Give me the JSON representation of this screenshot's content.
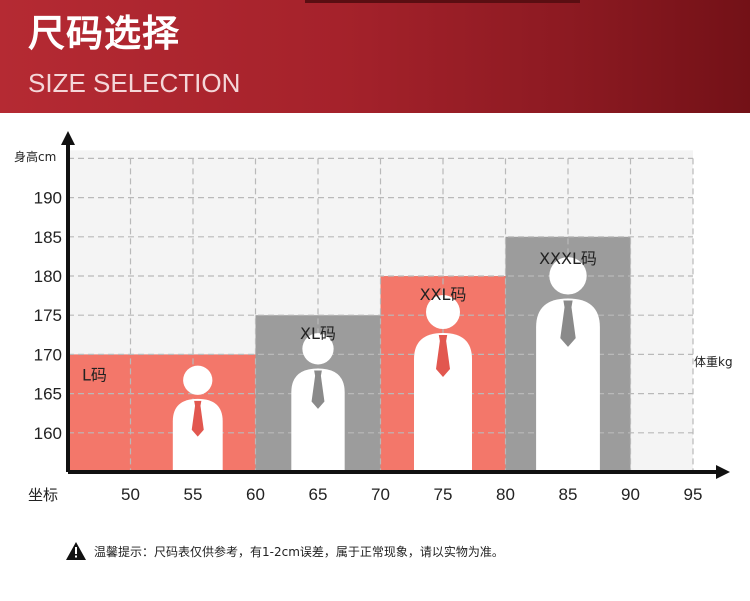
{
  "banner": {
    "title": "尺码选择",
    "subtitle": "SIZE SELECTION"
  },
  "chart_data": {
    "type": "bar",
    "y_axis_label": "身高cm",
    "x_axis_label": "体重kg",
    "x_origin_label": "坐标",
    "x_ticks": [
      50,
      55,
      60,
      65,
      70,
      75,
      80,
      85,
      90,
      95
    ],
    "y_ticks": [
      160,
      165,
      170,
      175,
      180,
      185,
      190
    ],
    "grid": true,
    "bars": [
      {
        "label": "L码",
        "x_start": 45,
        "x_end": 60,
        "height": 170,
        "color": "#f3776a"
      },
      {
        "label": "XL码",
        "x_start": 60,
        "x_end": 70,
        "height": 175,
        "color": "#9c9c9c"
      },
      {
        "label": "XXL码",
        "x_start": 70,
        "x_end": 80,
        "height": 180,
        "color": "#f3776a"
      },
      {
        "label": "XXXL码",
        "x_start": 80,
        "x_end": 90,
        "height": 185,
        "color": "#9c9c9c"
      }
    ]
  },
  "note": {
    "text": "温馨提示：尺码表仅供参考，有1-2cm误差，属于正常现象，请以实物为准。"
  }
}
